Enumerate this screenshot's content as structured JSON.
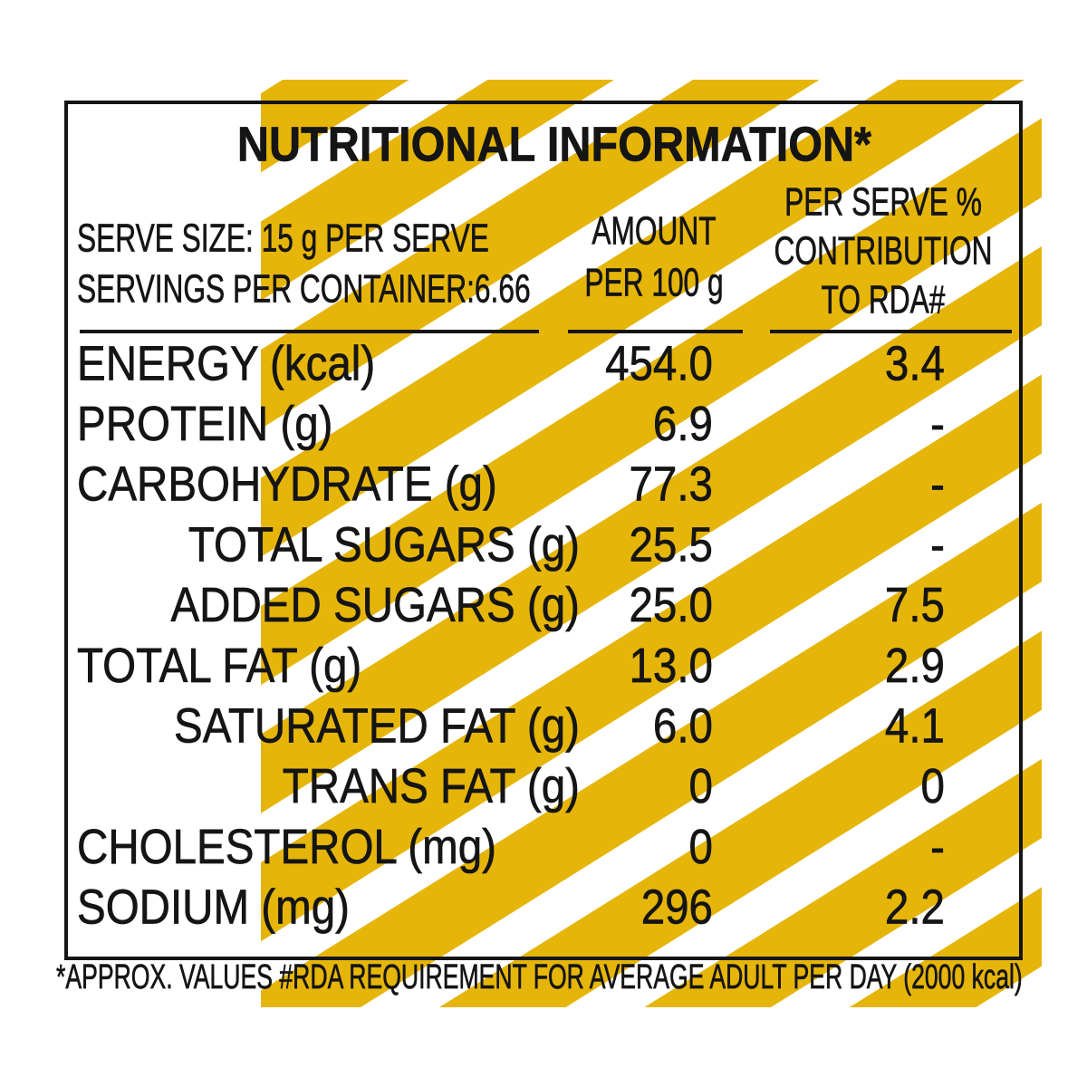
{
  "title": "NUTRITIONAL INFORMATION*",
  "serve_info": [
    "SERVE SIZE: 15 g PER SERVE",
    "SERVINGS PER CONTAINER:6.66"
  ],
  "columns": {
    "amount": [
      "AMOUNT",
      "PER 100 g"
    ],
    "rda": [
      "PER SERVE %",
      "CONTRIBUTION",
      "TO RDA#"
    ]
  },
  "rows": [
    [
      "ENERGY (kcal)",
      "454.0",
      "3.4"
    ],
    [
      "PROTEIN (g)",
      "6.9",
      "-"
    ],
    [
      "CARBOHYDRATE (g)",
      "77.3",
      "-"
    ],
    [
      "TOTAL SUGARS (g)",
      "25.5",
      "-"
    ],
    [
      "ADDED SUGARS (g)",
      "25.0",
      "7.5"
    ],
    [
      "TOTAL FAT (g)",
      "13.0",
      "2.9"
    ],
    [
      "SATURATED FAT (g)",
      "6.0",
      "4.1"
    ],
    [
      "TRANS FAT (g)",
      "0",
      "0"
    ],
    [
      "CHOLESTEROL (mg)",
      "0",
      "-"
    ],
    [
      "SODIUM (mg)",
      "296",
      "2.2"
    ]
  ],
  "footnote": "*APPROX. VALUES  #RDA REQUIREMENT FOR AVERAGE ADULT PER DAY (2000 kcal)"
}
